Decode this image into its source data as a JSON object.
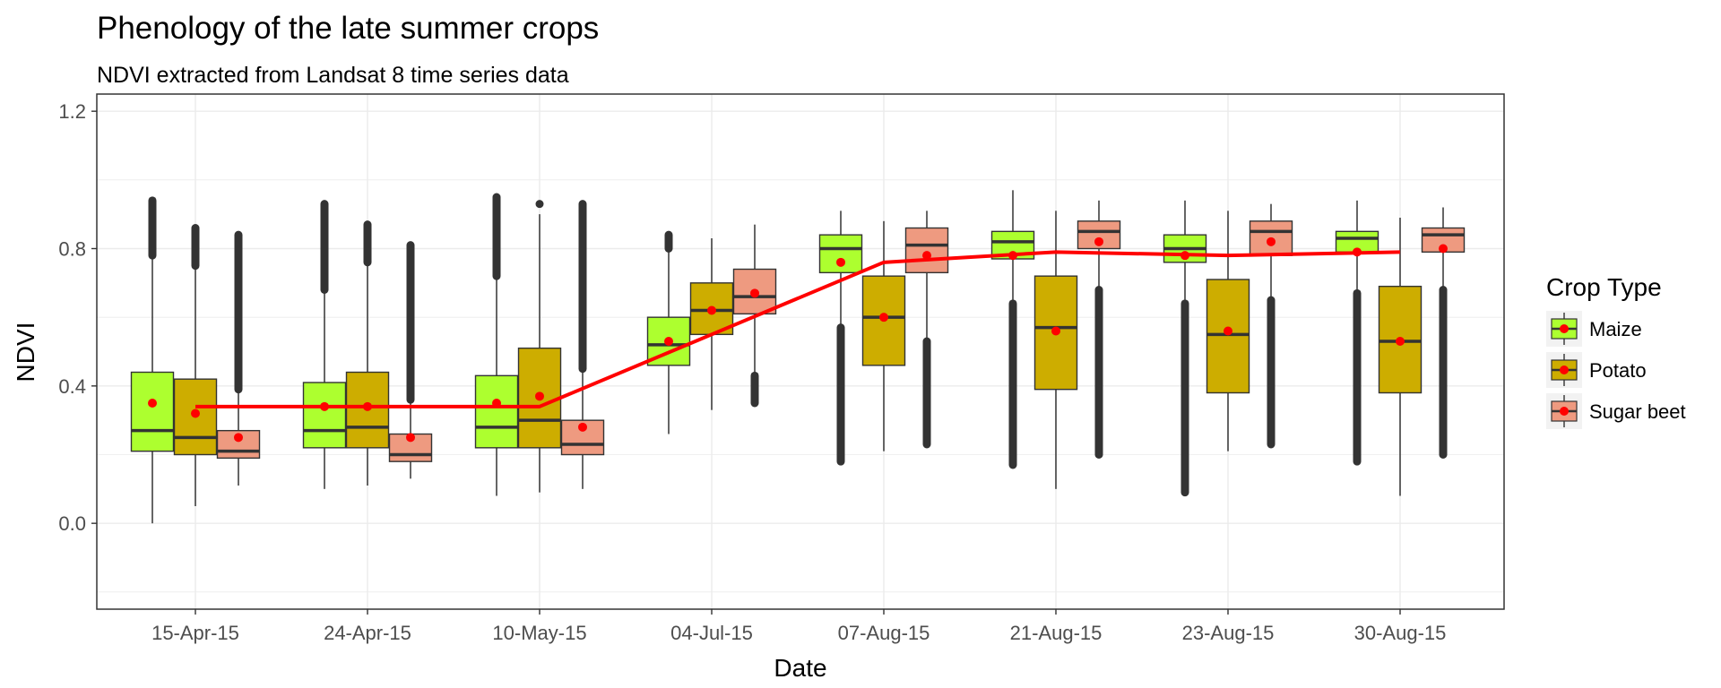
{
  "chart_data": {
    "type": "box",
    "title": "Phenology of the late summer crops",
    "subtitle": "NDVI extracted from Landsat 8 time series data",
    "xlabel": "Date",
    "ylabel": "NDVI",
    "ylim": [
      -0.25,
      1.25
    ],
    "yticks": [
      "0.0",
      "0.4",
      "0.8",
      "1.2"
    ],
    "categories": [
      "15-Apr-15",
      "24-Apr-15",
      "10-May-15",
      "04-Jul-15",
      "07-Aug-15",
      "21-Aug-15",
      "23-Aug-15",
      "30-Aug-15"
    ],
    "grid": true,
    "legend": {
      "title": "Crop Type",
      "position": "right"
    },
    "series": [
      {
        "name": "Maize",
        "color": "#adff2f",
        "boxes": [
          {
            "whisker_low": 0.0,
            "q1": 0.21,
            "median": 0.27,
            "q3": 0.44,
            "whisker_high": 0.78,
            "mean": 0.35,
            "outliers_high": [
              0.78,
              0.94
            ],
            "outliers_low": []
          },
          {
            "whisker_low": 0.1,
            "q1": 0.22,
            "median": 0.27,
            "q3": 0.41,
            "whisker_high": 0.68,
            "mean": 0.34,
            "outliers_high": [
              0.68,
              0.93
            ],
            "outliers_low": []
          },
          {
            "whisker_low": 0.08,
            "q1": 0.22,
            "median": 0.28,
            "q3": 0.43,
            "whisker_high": 0.72,
            "mean": 0.35,
            "outliers_high": [
              0.72,
              0.95
            ],
            "outliers_low": []
          },
          {
            "whisker_low": 0.26,
            "q1": 0.46,
            "median": 0.52,
            "q3": 0.6,
            "whisker_high": 0.8,
            "mean": 0.53,
            "outliers_high": [
              0.8,
              0.84
            ],
            "outliers_low": []
          },
          {
            "whisker_low": 0.58,
            "q1": 0.73,
            "median": 0.8,
            "q3": 0.84,
            "whisker_high": 0.91,
            "mean": 0.76,
            "outliers_high": [],
            "outliers_low": [
              0.18,
              0.57
            ]
          },
          {
            "whisker_low": 0.65,
            "q1": 0.77,
            "median": 0.82,
            "q3": 0.85,
            "whisker_high": 0.97,
            "mean": 0.78,
            "outliers_high": [],
            "outliers_low": [
              0.17,
              0.64
            ]
          },
          {
            "whisker_low": 0.64,
            "q1": 0.76,
            "median": 0.8,
            "q3": 0.84,
            "whisker_high": 0.94,
            "mean": 0.78,
            "outliers_high": [],
            "outliers_low": [
              0.09,
              0.64
            ]
          },
          {
            "whisker_low": 0.68,
            "q1": 0.79,
            "median": 0.83,
            "q3": 0.85,
            "whisker_high": 0.94,
            "mean": 0.79,
            "outliers_high": [],
            "outliers_low": [
              0.18,
              0.67
            ]
          }
        ]
      },
      {
        "name": "Potato",
        "color": "#cdad00",
        "boxes": [
          {
            "whisker_low": 0.05,
            "q1": 0.2,
            "median": 0.25,
            "q3": 0.42,
            "whisker_high": 0.75,
            "mean": 0.32,
            "outliers_high": [
              0.75,
              0.86
            ],
            "outliers_low": []
          },
          {
            "whisker_low": 0.11,
            "q1": 0.22,
            "median": 0.28,
            "q3": 0.44,
            "whisker_high": 0.76,
            "mean": 0.34,
            "outliers_high": [
              0.76,
              0.87
            ],
            "outliers_low": []
          },
          {
            "whisker_low": 0.09,
            "q1": 0.22,
            "median": 0.3,
            "q3": 0.51,
            "whisker_high": 0.9,
            "mean": 0.37,
            "outliers_high": [
              0.93,
              0.93
            ],
            "outliers_low": []
          },
          {
            "whisker_low": 0.33,
            "q1": 0.55,
            "median": 0.62,
            "q3": 0.7,
            "whisker_high": 0.83,
            "mean": 0.62,
            "outliers_high": [],
            "outliers_low": []
          },
          {
            "whisker_low": 0.21,
            "q1": 0.46,
            "median": 0.6,
            "q3": 0.72,
            "whisker_high": 0.88,
            "mean": 0.6,
            "outliers_high": [],
            "outliers_low": []
          },
          {
            "whisker_low": 0.1,
            "q1": 0.39,
            "median": 0.57,
            "q3": 0.72,
            "whisker_high": 0.91,
            "mean": 0.56,
            "outliers_high": [],
            "outliers_low": []
          },
          {
            "whisker_low": 0.21,
            "q1": 0.38,
            "median": 0.55,
            "q3": 0.71,
            "whisker_high": 0.91,
            "mean": 0.56,
            "outliers_high": [],
            "outliers_low": []
          },
          {
            "whisker_low": 0.08,
            "q1": 0.38,
            "median": 0.53,
            "q3": 0.69,
            "whisker_high": 0.89,
            "mean": 0.53,
            "outliers_high": [],
            "outliers_low": []
          }
        ]
      },
      {
        "name": "Sugar beet",
        "color": "#ee9a80",
        "boxes": [
          {
            "whisker_low": 0.11,
            "q1": 0.19,
            "median": 0.21,
            "q3": 0.27,
            "whisker_high": 0.39,
            "mean": 0.25,
            "outliers_high": [
              0.39,
              0.84
            ],
            "outliers_low": []
          },
          {
            "whisker_low": 0.13,
            "q1": 0.18,
            "median": 0.2,
            "q3": 0.26,
            "whisker_high": 0.36,
            "mean": 0.25,
            "outliers_high": [
              0.36,
              0.81
            ],
            "outliers_low": []
          },
          {
            "whisker_low": 0.1,
            "q1": 0.2,
            "median": 0.23,
            "q3": 0.3,
            "whisker_high": 0.45,
            "mean": 0.28,
            "outliers_high": [
              0.45,
              0.93
            ],
            "outliers_low": []
          },
          {
            "whisker_low": 0.44,
            "q1": 0.61,
            "median": 0.66,
            "q3": 0.74,
            "whisker_high": 0.87,
            "mean": 0.67,
            "outliers_high": [],
            "outliers_low": [
              0.35,
              0.43
            ]
          },
          {
            "whisker_low": 0.54,
            "q1": 0.73,
            "median": 0.81,
            "q3": 0.86,
            "whisker_high": 0.91,
            "mean": 0.78,
            "outliers_high": [],
            "outliers_low": [
              0.23,
              0.53
            ]
          },
          {
            "whisker_low": 0.69,
            "q1": 0.8,
            "median": 0.85,
            "q3": 0.88,
            "whisker_high": 0.94,
            "mean": 0.82,
            "outliers_high": [],
            "outliers_low": [
              0.2,
              0.68
            ]
          },
          {
            "whisker_low": 0.66,
            "q1": 0.78,
            "median": 0.85,
            "q3": 0.88,
            "whisker_high": 0.93,
            "mean": 0.82,
            "outliers_high": [],
            "outliers_low": [
              0.23,
              0.65
            ]
          },
          {
            "whisker_low": 0.69,
            "q1": 0.79,
            "median": 0.84,
            "q3": 0.86,
            "whisker_high": 0.92,
            "mean": 0.8,
            "outliers_high": [],
            "outliers_low": [
              0.2,
              0.68
            ]
          }
        ]
      }
    ],
    "trend_line": {
      "color": "#ff0000",
      "values": [
        0.34,
        0.34,
        0.34,
        0.55,
        0.76,
        0.79,
        0.78,
        0.79
      ]
    },
    "mean_point_color": "#ff0000"
  }
}
